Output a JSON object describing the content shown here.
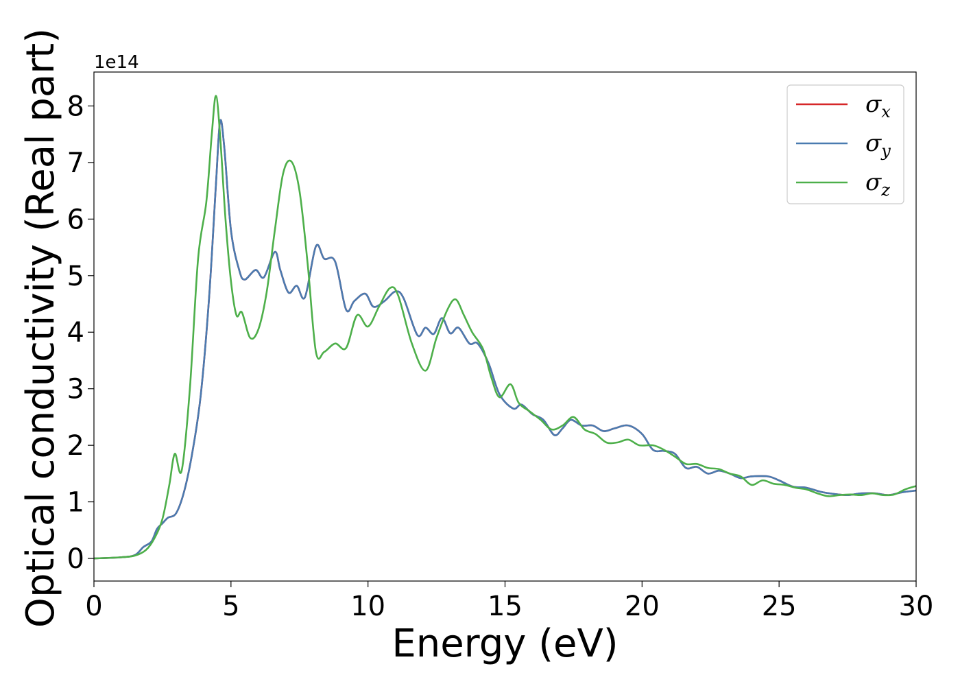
{
  "chart_data": {
    "type": "line",
    "title": "",
    "xlabel": "Energy (eV)",
    "ylabel": "Optical conductivity (Real part)",
    "y_offset_label": "1e14",
    "xlim": [
      0,
      30
    ],
    "ylim": [
      -0.4,
      8.6
    ],
    "x_ticks": [
      0,
      5,
      10,
      15,
      20,
      25,
      30
    ],
    "y_ticks": [
      0,
      1,
      2,
      3,
      4,
      5,
      6,
      7,
      8
    ],
    "grid": false,
    "legend_position": "top-right",
    "series": [
      {
        "name": "σx",
        "symbol": "σ",
        "subscript": "x",
        "color": "#d62728",
        "points": [
          [
            0,
            0
          ],
          [
            1,
            0.02
          ],
          [
            1.5,
            0.06
          ],
          [
            1.8,
            0.2
          ],
          [
            2.1,
            0.3
          ],
          [
            2.3,
            0.52
          ],
          [
            2.5,
            0.62
          ],
          [
            2.7,
            0.72
          ],
          [
            3.0,
            0.8
          ],
          [
            3.3,
            1.2
          ],
          [
            3.6,
            1.9
          ],
          [
            3.9,
            2.9
          ],
          [
            4.2,
            4.6
          ],
          [
            4.45,
            6.6
          ],
          [
            4.6,
            7.72
          ],
          [
            4.75,
            7.3
          ],
          [
            5.0,
            5.8
          ],
          [
            5.3,
            5.1
          ],
          [
            5.5,
            4.93
          ],
          [
            5.9,
            5.1
          ],
          [
            6.2,
            4.97
          ],
          [
            6.6,
            5.42
          ],
          [
            6.8,
            5.1
          ],
          [
            7.1,
            4.7
          ],
          [
            7.4,
            4.82
          ],
          [
            7.7,
            4.62
          ],
          [
            8.1,
            5.52
          ],
          [
            8.4,
            5.3
          ],
          [
            8.8,
            5.25
          ],
          [
            9.2,
            4.4
          ],
          [
            9.5,
            4.55
          ],
          [
            9.9,
            4.68
          ],
          [
            10.2,
            4.45
          ],
          [
            10.6,
            4.55
          ],
          [
            11.0,
            4.72
          ],
          [
            11.3,
            4.6
          ],
          [
            11.8,
            3.95
          ],
          [
            12.1,
            4.08
          ],
          [
            12.4,
            3.97
          ],
          [
            12.7,
            4.25
          ],
          [
            13.0,
            3.98
          ],
          [
            13.3,
            4.08
          ],
          [
            13.7,
            3.8
          ],
          [
            14.0,
            3.8
          ],
          [
            14.4,
            3.45
          ],
          [
            14.8,
            2.9
          ],
          [
            15.3,
            2.65
          ],
          [
            15.6,
            2.72
          ],
          [
            16.0,
            2.55
          ],
          [
            16.4,
            2.45
          ],
          [
            16.8,
            2.18
          ],
          [
            17.1,
            2.3
          ],
          [
            17.4,
            2.45
          ],
          [
            17.8,
            2.35
          ],
          [
            18.2,
            2.35
          ],
          [
            18.6,
            2.25
          ],
          [
            19.0,
            2.3
          ],
          [
            19.5,
            2.35
          ],
          [
            20.0,
            2.2
          ],
          [
            20.4,
            1.92
          ],
          [
            20.8,
            1.9
          ],
          [
            21.2,
            1.85
          ],
          [
            21.6,
            1.6
          ],
          [
            22.0,
            1.62
          ],
          [
            22.4,
            1.5
          ],
          [
            22.8,
            1.55
          ],
          [
            23.2,
            1.5
          ],
          [
            23.6,
            1.42
          ],
          [
            24.0,
            1.45
          ],
          [
            24.6,
            1.45
          ],
          [
            25.0,
            1.38
          ],
          [
            25.5,
            1.27
          ],
          [
            26.0,
            1.25
          ],
          [
            26.5,
            1.18
          ],
          [
            27.0,
            1.14
          ],
          [
            27.5,
            1.12
          ],
          [
            28.0,
            1.15
          ],
          [
            28.5,
            1.15
          ],
          [
            29.0,
            1.12
          ],
          [
            29.5,
            1.17
          ],
          [
            30.0,
            1.2
          ]
        ]
      },
      {
        "name": "σy",
        "symbol": "σ",
        "subscript": "y",
        "color": "#4a7bb0",
        "points": [
          [
            0,
            0
          ],
          [
            1,
            0.02
          ],
          [
            1.5,
            0.06
          ],
          [
            1.8,
            0.2
          ],
          [
            2.1,
            0.3
          ],
          [
            2.3,
            0.52
          ],
          [
            2.5,
            0.62
          ],
          [
            2.7,
            0.72
          ],
          [
            3.0,
            0.8
          ],
          [
            3.3,
            1.2
          ],
          [
            3.6,
            1.9
          ],
          [
            3.9,
            2.9
          ],
          [
            4.2,
            4.6
          ],
          [
            4.45,
            6.6
          ],
          [
            4.6,
            7.72
          ],
          [
            4.75,
            7.3
          ],
          [
            5.0,
            5.8
          ],
          [
            5.3,
            5.1
          ],
          [
            5.5,
            4.93
          ],
          [
            5.9,
            5.1
          ],
          [
            6.2,
            4.97
          ],
          [
            6.6,
            5.42
          ],
          [
            6.8,
            5.1
          ],
          [
            7.1,
            4.7
          ],
          [
            7.4,
            4.82
          ],
          [
            7.7,
            4.62
          ],
          [
            8.1,
            5.52
          ],
          [
            8.4,
            5.3
          ],
          [
            8.8,
            5.25
          ],
          [
            9.2,
            4.4
          ],
          [
            9.5,
            4.55
          ],
          [
            9.9,
            4.68
          ],
          [
            10.2,
            4.45
          ],
          [
            10.6,
            4.55
          ],
          [
            11.0,
            4.72
          ],
          [
            11.3,
            4.6
          ],
          [
            11.8,
            3.95
          ],
          [
            12.1,
            4.08
          ],
          [
            12.4,
            3.97
          ],
          [
            12.7,
            4.25
          ],
          [
            13.0,
            3.98
          ],
          [
            13.3,
            4.08
          ],
          [
            13.7,
            3.8
          ],
          [
            14.0,
            3.8
          ],
          [
            14.4,
            3.45
          ],
          [
            14.8,
            2.9
          ],
          [
            15.3,
            2.65
          ],
          [
            15.6,
            2.72
          ],
          [
            16.0,
            2.55
          ],
          [
            16.4,
            2.45
          ],
          [
            16.8,
            2.18
          ],
          [
            17.1,
            2.3
          ],
          [
            17.4,
            2.45
          ],
          [
            17.8,
            2.35
          ],
          [
            18.2,
            2.35
          ],
          [
            18.6,
            2.25
          ],
          [
            19.0,
            2.3
          ],
          [
            19.5,
            2.35
          ],
          [
            20.0,
            2.2
          ],
          [
            20.4,
            1.92
          ],
          [
            20.8,
            1.9
          ],
          [
            21.2,
            1.85
          ],
          [
            21.6,
            1.6
          ],
          [
            22.0,
            1.62
          ],
          [
            22.4,
            1.5
          ],
          [
            22.8,
            1.55
          ],
          [
            23.2,
            1.5
          ],
          [
            23.6,
            1.42
          ],
          [
            24.0,
            1.45
          ],
          [
            24.6,
            1.45
          ],
          [
            25.0,
            1.38
          ],
          [
            25.5,
            1.27
          ],
          [
            26.0,
            1.25
          ],
          [
            26.5,
            1.18
          ],
          [
            27.0,
            1.14
          ],
          [
            27.5,
            1.12
          ],
          [
            28.0,
            1.15
          ],
          [
            28.5,
            1.15
          ],
          [
            29.0,
            1.12
          ],
          [
            29.5,
            1.17
          ],
          [
            30.0,
            1.2
          ]
        ]
      },
      {
        "name": "σz",
        "symbol": "σ",
        "subscript": "z",
        "color": "#4daf4a",
        "points": [
          [
            0,
            0
          ],
          [
            1,
            0.02
          ],
          [
            1.5,
            0.05
          ],
          [
            1.9,
            0.15
          ],
          [
            2.2,
            0.35
          ],
          [
            2.5,
            0.7
          ],
          [
            2.75,
            1.3
          ],
          [
            2.95,
            1.85
          ],
          [
            3.2,
            1.55
          ],
          [
            3.5,
            3.0
          ],
          [
            3.8,
            5.3
          ],
          [
            4.1,
            6.3
          ],
          [
            4.3,
            7.5
          ],
          [
            4.45,
            8.18
          ],
          [
            4.6,
            7.5
          ],
          [
            4.8,
            6.0
          ],
          [
            5.0,
            4.9
          ],
          [
            5.2,
            4.3
          ],
          [
            5.4,
            4.35
          ],
          [
            5.7,
            3.9
          ],
          [
            6.0,
            4.05
          ],
          [
            6.3,
            4.7
          ],
          [
            6.6,
            5.8
          ],
          [
            6.9,
            6.8
          ],
          [
            7.2,
            7.02
          ],
          [
            7.5,
            6.5
          ],
          [
            7.8,
            5.2
          ],
          [
            8.1,
            3.65
          ],
          [
            8.4,
            3.65
          ],
          [
            8.8,
            3.8
          ],
          [
            9.2,
            3.72
          ],
          [
            9.6,
            4.3
          ],
          [
            10.0,
            4.1
          ],
          [
            10.4,
            4.45
          ],
          [
            10.8,
            4.78
          ],
          [
            11.1,
            4.65
          ],
          [
            11.6,
            3.8
          ],
          [
            12.1,
            3.32
          ],
          [
            12.5,
            3.9
          ],
          [
            12.9,
            4.4
          ],
          [
            13.2,
            4.58
          ],
          [
            13.5,
            4.3
          ],
          [
            13.8,
            4.0
          ],
          [
            14.2,
            3.7
          ],
          [
            14.5,
            3.2
          ],
          [
            14.8,
            2.85
          ],
          [
            15.2,
            3.08
          ],
          [
            15.5,
            2.75
          ],
          [
            15.9,
            2.6
          ],
          [
            16.3,
            2.45
          ],
          [
            16.7,
            2.28
          ],
          [
            17.1,
            2.35
          ],
          [
            17.5,
            2.5
          ],
          [
            17.9,
            2.28
          ],
          [
            18.3,
            2.2
          ],
          [
            18.7,
            2.05
          ],
          [
            19.1,
            2.05
          ],
          [
            19.5,
            2.1
          ],
          [
            19.9,
            2.0
          ],
          [
            20.4,
            2.0
          ],
          [
            20.8,
            1.92
          ],
          [
            21.2,
            1.8
          ],
          [
            21.6,
            1.67
          ],
          [
            22.0,
            1.67
          ],
          [
            22.4,
            1.6
          ],
          [
            22.8,
            1.58
          ],
          [
            23.2,
            1.5
          ],
          [
            23.6,
            1.45
          ],
          [
            24.0,
            1.3
          ],
          [
            24.4,
            1.38
          ],
          [
            24.8,
            1.32
          ],
          [
            25.2,
            1.3
          ],
          [
            25.6,
            1.25
          ],
          [
            26.0,
            1.22
          ],
          [
            26.4,
            1.15
          ],
          [
            26.8,
            1.1
          ],
          [
            27.2,
            1.12
          ],
          [
            27.6,
            1.13
          ],
          [
            28.0,
            1.12
          ],
          [
            28.4,
            1.15
          ],
          [
            28.8,
            1.12
          ],
          [
            29.2,
            1.13
          ],
          [
            29.6,
            1.22
          ],
          [
            30.0,
            1.28
          ]
        ]
      }
    ]
  }
}
